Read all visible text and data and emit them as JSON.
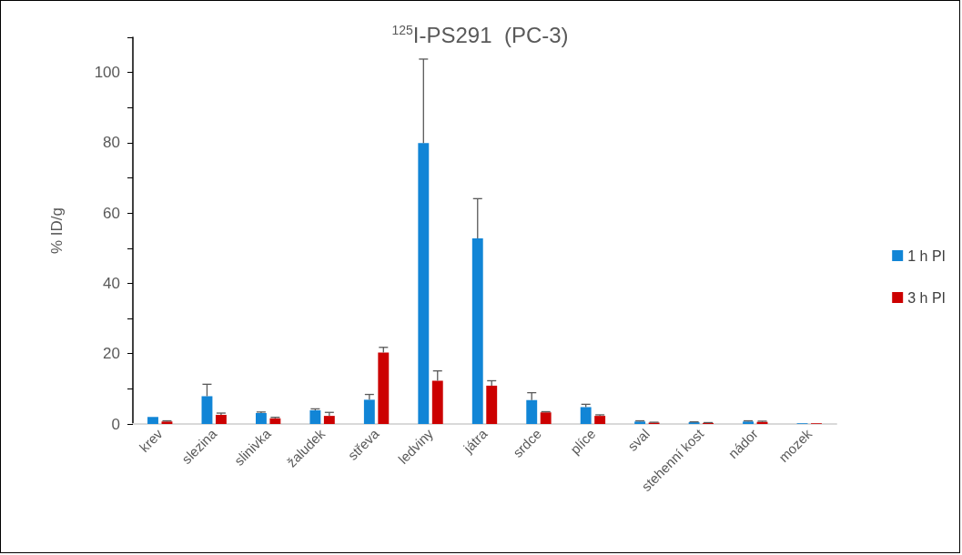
{
  "chart_data": {
    "type": "bar",
    "title": "$^{125}$I-PS291  (PC-3)",
    "ylabel": "% ID/g",
    "categories": [
      "krev",
      "slezina",
      "slinivka",
      "žaludek",
      "střeva",
      "ledviny",
      "játra",
      "srdce",
      "plíce",
      "sval",
      "stehenní kost",
      "nádor",
      "mozek"
    ],
    "series": [
      {
        "name": "1 h PI",
        "color": "#1185d6",
        "values": [
          2.0,
          7.9,
          3.1,
          3.9,
          6.9,
          79.9,
          52.8,
          6.8,
          4.8,
          0.7,
          0.5,
          0.7,
          0.2
        ],
        "errors": [
          null,
          [
            7.9,
            11.3
          ],
          [
            3.1,
            3.4
          ],
          [
            3.9,
            4.3
          ],
          [
            6.9,
            8.4
          ],
          [
            79.9,
            103.8
          ],
          [
            52.8,
            64.1
          ],
          [
            6.8,
            8.9
          ],
          [
            4.8,
            5.6
          ],
          [
            0.7,
            0.9
          ],
          [
            0.5,
            0.6
          ],
          [
            0.7,
            0.9
          ],
          null
        ]
      },
      {
        "name": "3 h PI",
        "color": "#cc0000",
        "values": [
          0.7,
          2.6,
          1.6,
          2.3,
          20.3,
          12.3,
          10.9,
          3.3,
          2.3,
          0.4,
          0.3,
          0.6,
          0.2
        ],
        "errors": [
          [
            0.7,
            0.9
          ],
          [
            2.6,
            3.1
          ],
          [
            1.6,
            1.9
          ],
          [
            2.3,
            3.3
          ],
          [
            20.3,
            21.8
          ],
          [
            12.3,
            15.1
          ],
          [
            10.9,
            12.3
          ],
          [
            3.3,
            3.5
          ],
          [
            2.3,
            2.6
          ],
          [
            0.4,
            0.5
          ],
          [
            0.3,
            0.4
          ],
          [
            0.6,
            0.8
          ],
          null
        ]
      }
    ],
    "ylim": [
      0,
      110
    ],
    "yticks": [
      0,
      {
        "value": 10,
        "label": null
      },
      20,
      {
        "value": 30,
        "label": null
      },
      40,
      {
        "value": 50,
        "label": null
      },
      60,
      {
        "value": 70,
        "label": null
      },
      80,
      {
        "value": 90,
        "label": null
      },
      100,
      {
        "value": 110,
        "label": null
      }
    ],
    "grid": false,
    "legend": "right"
  }
}
